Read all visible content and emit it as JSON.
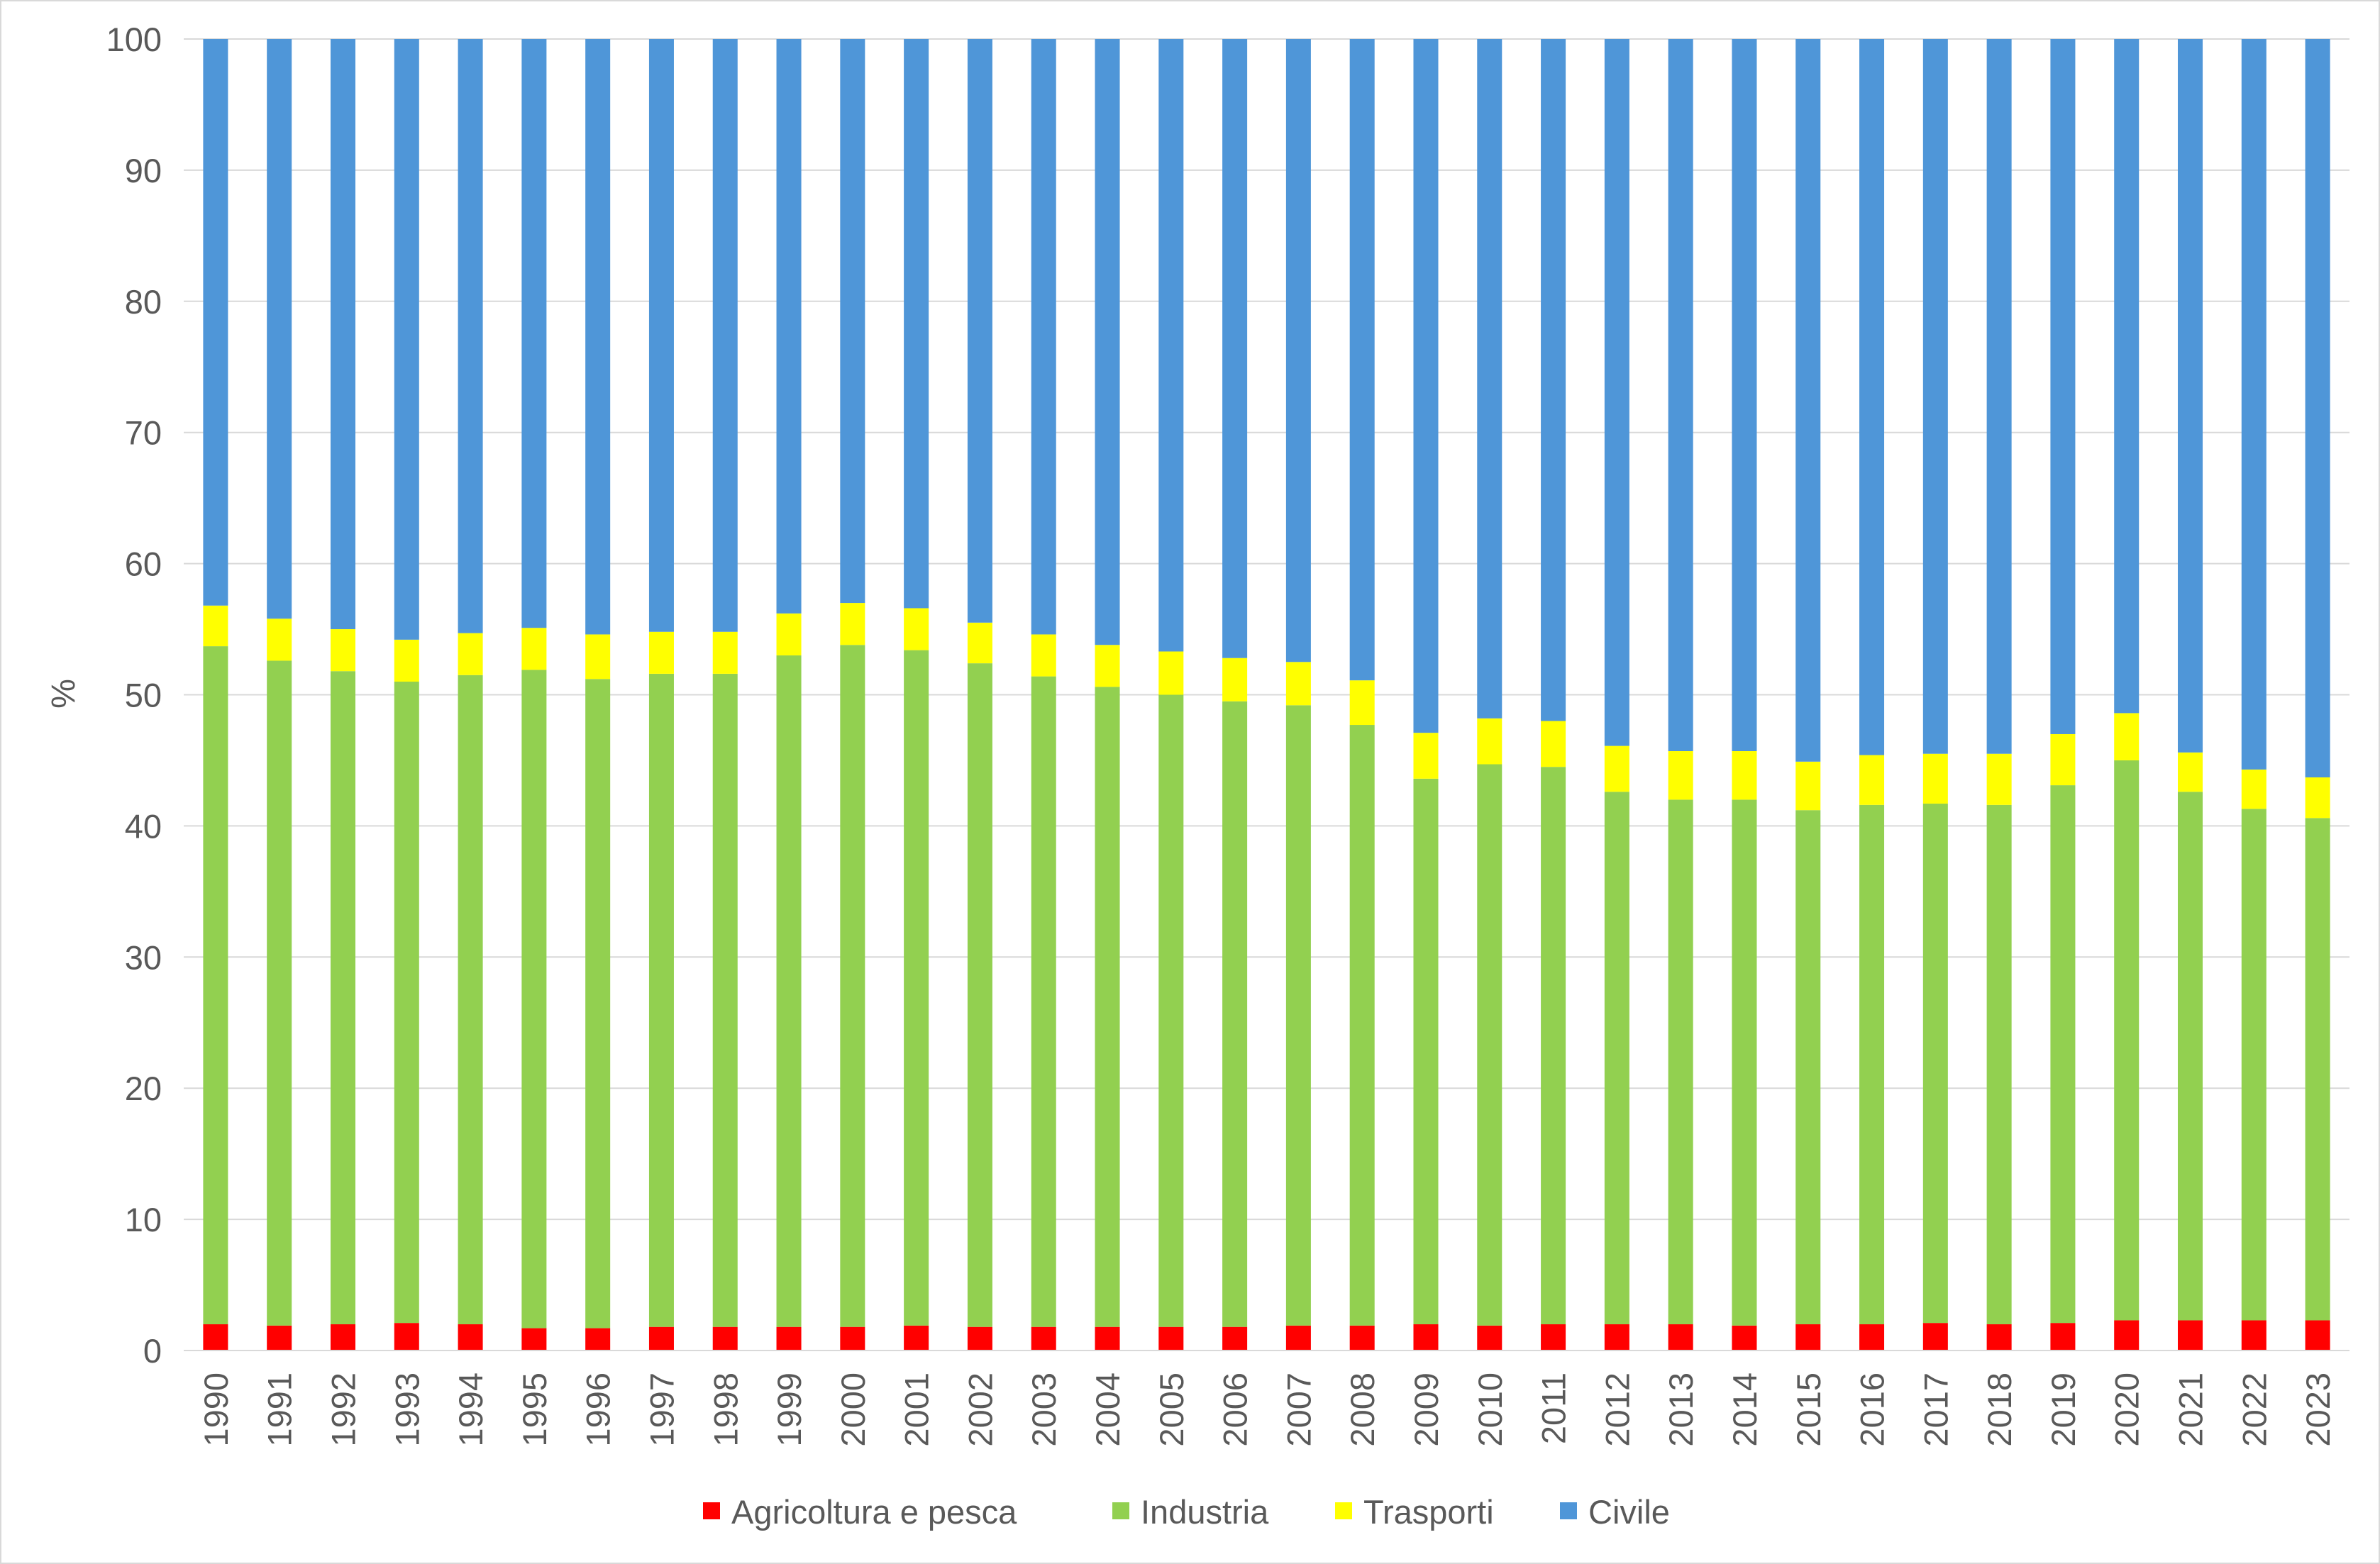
{
  "chart_data": {
    "type": "bar",
    "stacked": true,
    "ylabel": "%",
    "xlabel": "",
    "ylim": [
      0,
      100
    ],
    "yticks": [
      0,
      10,
      20,
      30,
      40,
      50,
      60,
      70,
      80,
      90,
      100
    ],
    "grid": true,
    "legend_position": "bottom",
    "categories": [
      "1990",
      "1991",
      "1992",
      "1993",
      "1994",
      "1995",
      "1996",
      "1997",
      "1998",
      "1999",
      "2000",
      "2001",
      "2002",
      "2003",
      "2004",
      "2005",
      "2006",
      "2007",
      "2008",
      "2009",
      "2010",
      "2011",
      "2012",
      "2013",
      "2014",
      "2015",
      "2016",
      "2017",
      "2018",
      "2019",
      "2020",
      "2021",
      "2022",
      "2023"
    ],
    "series": [
      {
        "name": "Agricoltura e pesca",
        "color": "#ff0000",
        "values": [
          2.0,
          1.9,
          2.0,
          2.1,
          2.0,
          1.7,
          1.7,
          1.8,
          1.8,
          1.8,
          1.8,
          1.9,
          1.8,
          1.8,
          1.8,
          1.8,
          1.8,
          1.9,
          1.9,
          2.0,
          1.9,
          2.0,
          2.0,
          2.0,
          1.9,
          2.0,
          2.0,
          2.1,
          2.0,
          2.1,
          2.3,
          2.3,
          2.3,
          2.3
        ]
      },
      {
        "name": "Industria",
        "color": "#92d050",
        "values": [
          51.7,
          50.7,
          49.8,
          48.9,
          49.5,
          50.2,
          49.5,
          49.8,
          49.8,
          51.2,
          52.0,
          51.5,
          50.6,
          49.6,
          48.8,
          48.2,
          47.7,
          47.3,
          45.8,
          41.6,
          42.8,
          42.5,
          40.6,
          40.0,
          40.1,
          39.2,
          39.6,
          39.6,
          39.6,
          41.0,
          42.7,
          40.3,
          39.0,
          38.3
        ]
      },
      {
        "name": "Trasporti",
        "color": "#ffff00",
        "values": [
          3.1,
          3.2,
          3.2,
          3.2,
          3.2,
          3.2,
          3.4,
          3.2,
          3.2,
          3.2,
          3.2,
          3.2,
          3.1,
          3.2,
          3.2,
          3.3,
          3.3,
          3.3,
          3.4,
          3.5,
          3.5,
          3.5,
          3.5,
          3.7,
          3.7,
          3.7,
          3.8,
          3.8,
          3.9,
          3.9,
          3.6,
          3.0,
          3.0,
          3.1
        ]
      },
      {
        "name": "Civile",
        "color": "#4f96d8",
        "values": [
          43.2,
          44.2,
          45.0,
          45.8,
          45.3,
          44.9,
          45.4,
          45.2,
          45.2,
          43.8,
          43.0,
          43.4,
          44.5,
          45.4,
          46.2,
          46.7,
          47.2,
          47.5,
          48.9,
          52.9,
          51.8,
          52.0,
          53.9,
          54.3,
          54.3,
          55.1,
          54.6,
          54.5,
          54.5,
          53.0,
          51.4,
          54.4,
          55.7,
          56.3
        ]
      }
    ]
  }
}
